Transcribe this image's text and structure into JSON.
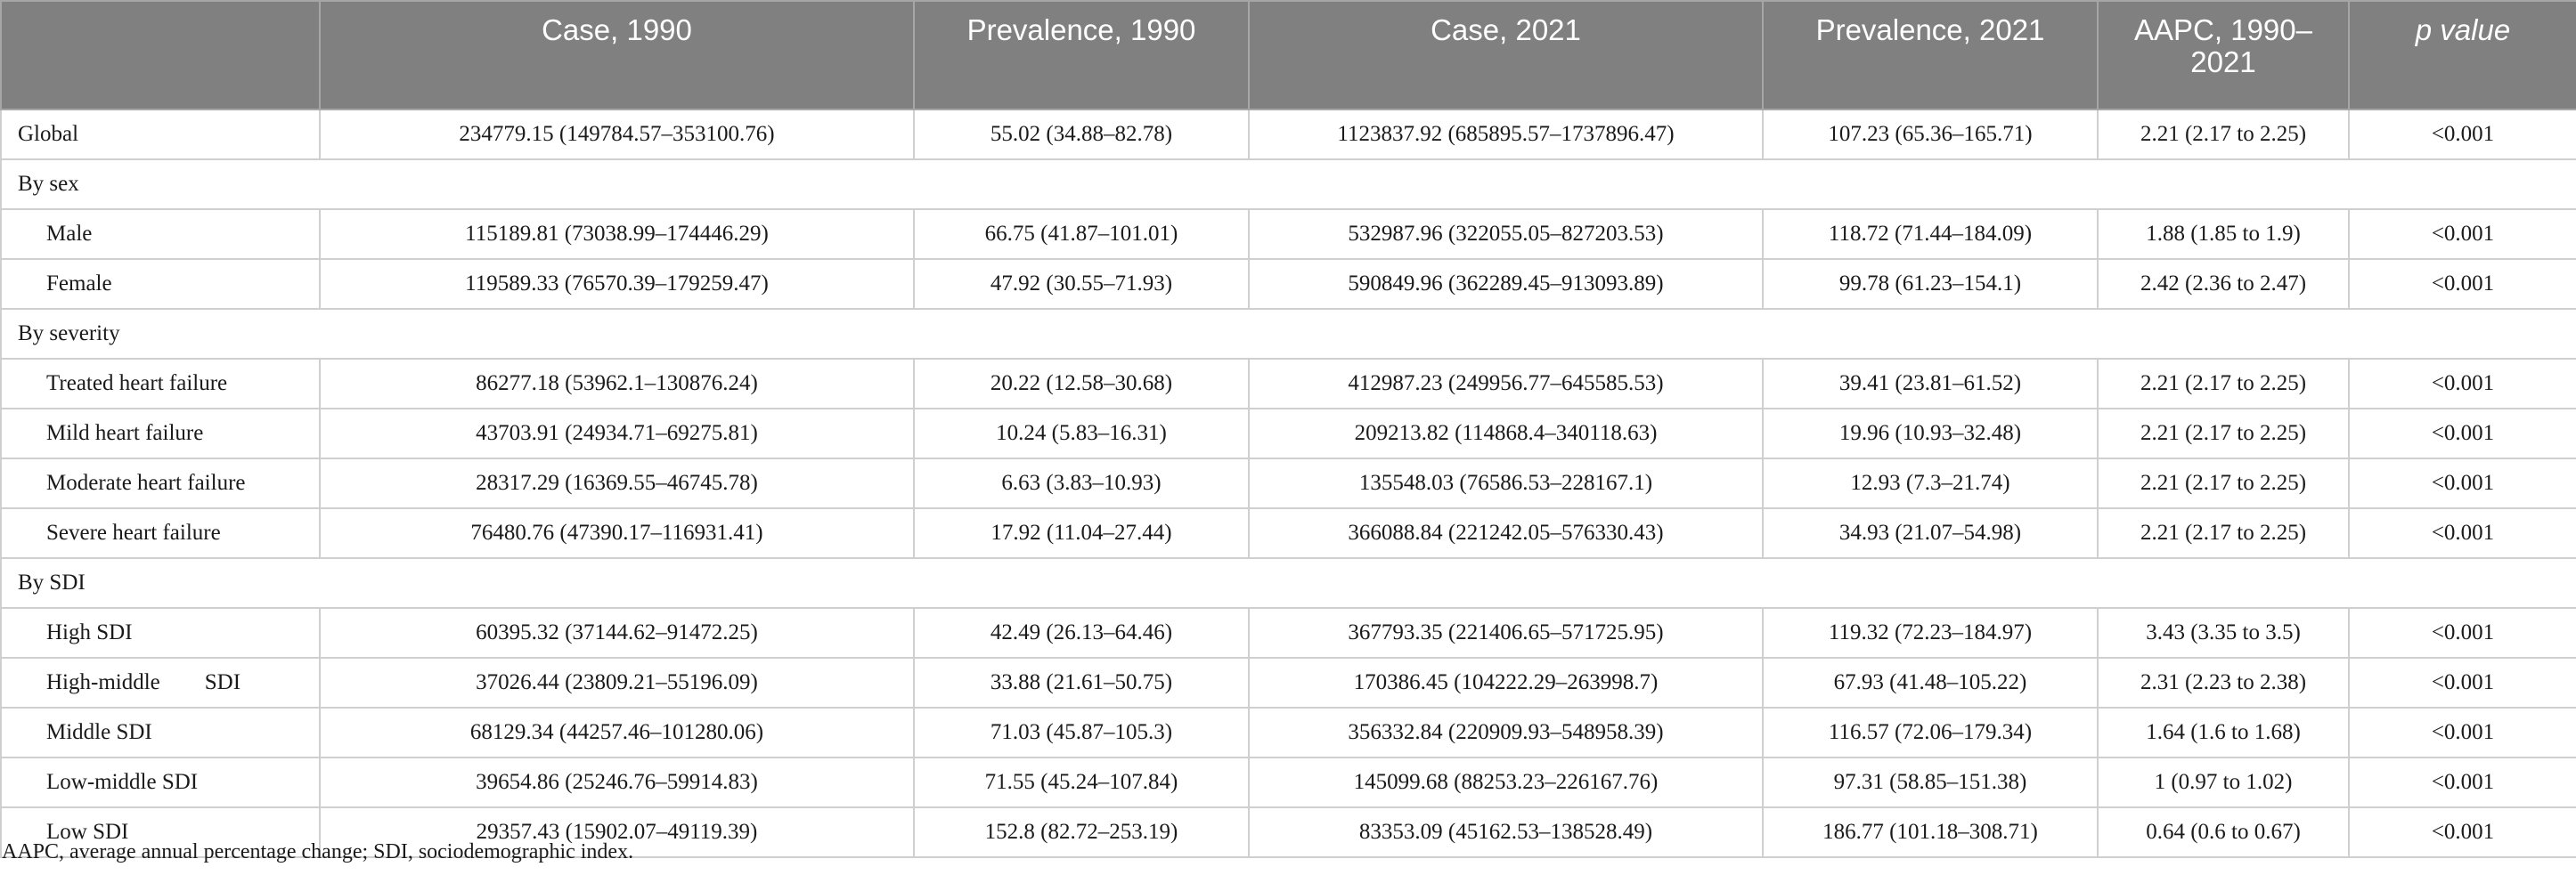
{
  "table": {
    "headers": [
      {
        "text": "",
        "italic": false
      },
      {
        "text": "Case, 1990",
        "italic": false
      },
      {
        "text": "Prevalence, 1990",
        "italic": false
      },
      {
        "text": "Case, 2021",
        "italic": false
      },
      {
        "text": "Prevalence, 2021",
        "italic": false
      },
      {
        "text": "AAPC, 1990–2021",
        "italic": false
      },
      {
        "text": "p value",
        "italic": true
      }
    ],
    "rows": [
      {
        "kind": "data",
        "label": "Global",
        "cells": [
          "234779.15 (149784.57–353100.76)",
          "55.02 (34.88–82.78)",
          "1123837.92 (685895.57–1737896.47)",
          "107.23 (65.36–165.71)",
          "2.21 (2.17 to 2.25)",
          "<0.001"
        ]
      },
      {
        "kind": "group",
        "label": "By sex"
      },
      {
        "kind": "sub",
        "label": "Male",
        "cells": [
          "115189.81 (73038.99–174446.29)",
          "66.75 (41.87–101.01)",
          "532987.96 (322055.05–827203.53)",
          "118.72 (71.44–184.09)",
          "1.88 (1.85 to 1.9)",
          "<0.001"
        ]
      },
      {
        "kind": "sub",
        "label": "Female",
        "cells": [
          "119589.33 (76570.39–179259.47)",
          "47.92 (30.55–71.93)",
          "590849.96 (362289.45–913093.89)",
          "99.78 (61.23–154.1)",
          "2.42 (2.36 to 2.47)",
          "<0.001"
        ]
      },
      {
        "kind": "group",
        "label": "By severity"
      },
      {
        "kind": "sub",
        "label": "Treated heart failure",
        "cells": [
          "86277.18 (53962.1–130876.24)",
          "20.22 (12.58–30.68)",
          "412987.23 (249956.77–645585.53)",
          "39.41 (23.81–61.52)",
          "2.21 (2.17 to 2.25)",
          "<0.001"
        ]
      },
      {
        "kind": "sub",
        "label": "Mild heart failure",
        "cells": [
          "43703.91 (24934.71–69275.81)",
          "10.24 (5.83–16.31)",
          "209213.82 (114868.4–340118.63)",
          "19.96 (10.93–32.48)",
          "2.21 (2.17 to 2.25)",
          "<0.001"
        ]
      },
      {
        "kind": "sub",
        "label": "Moderate heart failure",
        "cells": [
          "28317.29 (16369.55–46745.78)",
          "6.63 (3.83–10.93)",
          "135548.03 (76586.53–228167.1)",
          "12.93 (7.3–21.74)",
          "2.21 (2.17 to 2.25)",
          "<0.001"
        ]
      },
      {
        "kind": "sub",
        "label": "Severe heart failure",
        "cells": [
          "76480.76 (47390.17–116931.41)",
          "17.92 (11.04–27.44)",
          "366088.84 (221242.05–576330.43)",
          "34.93 (21.07–54.98)",
          "2.21 (2.17 to 2.25)",
          "<0.001"
        ]
      },
      {
        "kind": "group",
        "label": "By SDI"
      },
      {
        "kind": "sub",
        "label": "High SDI",
        "cells": [
          "60395.32 (37144.62–91472.25)",
          "42.49 (26.13–64.46)",
          "367793.35 (221406.65–571725.95)",
          "119.32 (72.23–184.97)",
          "3.43 (3.35 to 3.5)",
          "<0.001"
        ]
      },
      {
        "kind": "sub",
        "label": "High-middle        SDI",
        "cells": [
          "37026.44 (23809.21–55196.09)",
          "33.88 (21.61–50.75)",
          "170386.45 (104222.29–263998.7)",
          "67.93 (41.48–105.22)",
          "2.31 (2.23 to 2.38)",
          "<0.001"
        ]
      },
      {
        "kind": "sub",
        "label": "Middle SDI",
        "cells": [
          "68129.34 (44257.46–101280.06)",
          "71.03 (45.87–105.3)",
          "356332.84 (220909.93–548958.39)",
          "116.57 (72.06–179.34)",
          "1.64 (1.6 to 1.68)",
          "<0.001"
        ]
      },
      {
        "kind": "sub",
        "label": "Low-middle SDI",
        "cells": [
          "39654.86 (25246.76–59914.83)",
          "71.55 (45.24–107.84)",
          "145099.68 (88253.23–226167.76)",
          "97.31 (58.85–151.38)",
          "1 (0.97 to 1.02)",
          "<0.001"
        ]
      },
      {
        "kind": "sub",
        "label": "Low SDI",
        "cells": [
          "29357.43 (15902.07–49119.39)",
          "152.8 (82.72–253.19)",
          "83353.09 (45162.53–138528.49)",
          "186.77 (101.18–308.71)",
          "0.64 (0.6 to 0.67)",
          "<0.001"
        ]
      }
    ]
  },
  "footnote": "AAPC, average annual percentage change; SDI, sociodemographic index."
}
